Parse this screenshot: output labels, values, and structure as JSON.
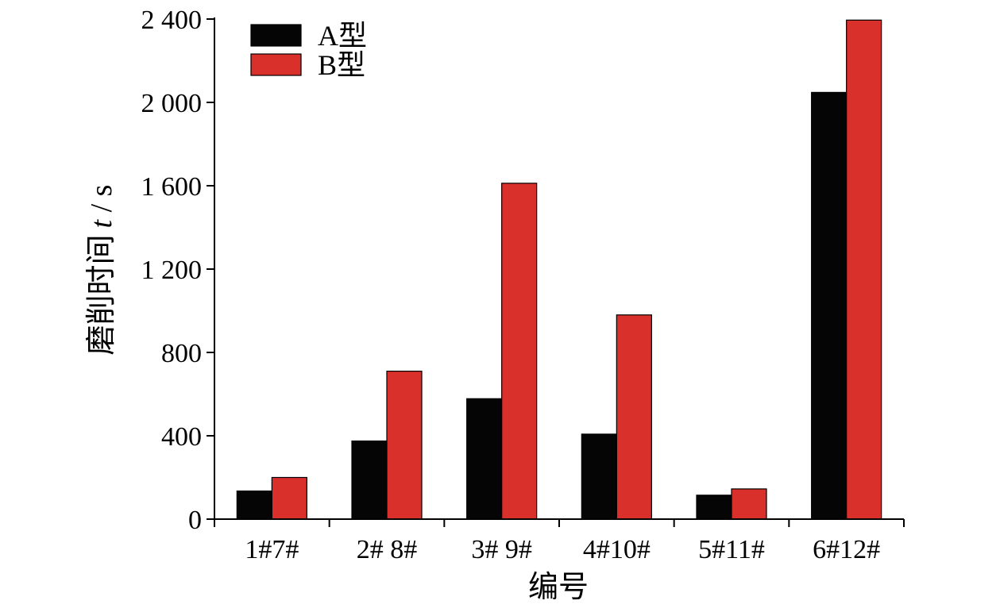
{
  "chart_data": {
    "type": "bar",
    "title": "",
    "xlabel": "编号",
    "ylabel_text": "磨削时间",
    "ylabel_var": "t",
    "ylabel_unit": " / s",
    "categories": [
      "1#7#",
      "2# 8#",
      "3# 9#",
      "4#10#",
      "5#11#",
      "6#12#"
    ],
    "series": [
      {
        "name": "A型",
        "color": "#050505",
        "values": [
          135,
          375,
          578,
          408,
          115,
          2048
        ]
      },
      {
        "name": "B型",
        "color": "#d9302c",
        "values": [
          200,
          710,
          1612,
          980,
          145,
          2395
        ]
      }
    ],
    "ylim": [
      0,
      2400
    ],
    "yticks": [
      0,
      400,
      800,
      1200,
      1600,
      2000,
      2400
    ],
    "ytick_labels": [
      "0",
      "400",
      "800",
      "1 200",
      "1 600",
      "2 000",
      "2 400"
    ],
    "legend_position": "top-left",
    "grid": false
  }
}
